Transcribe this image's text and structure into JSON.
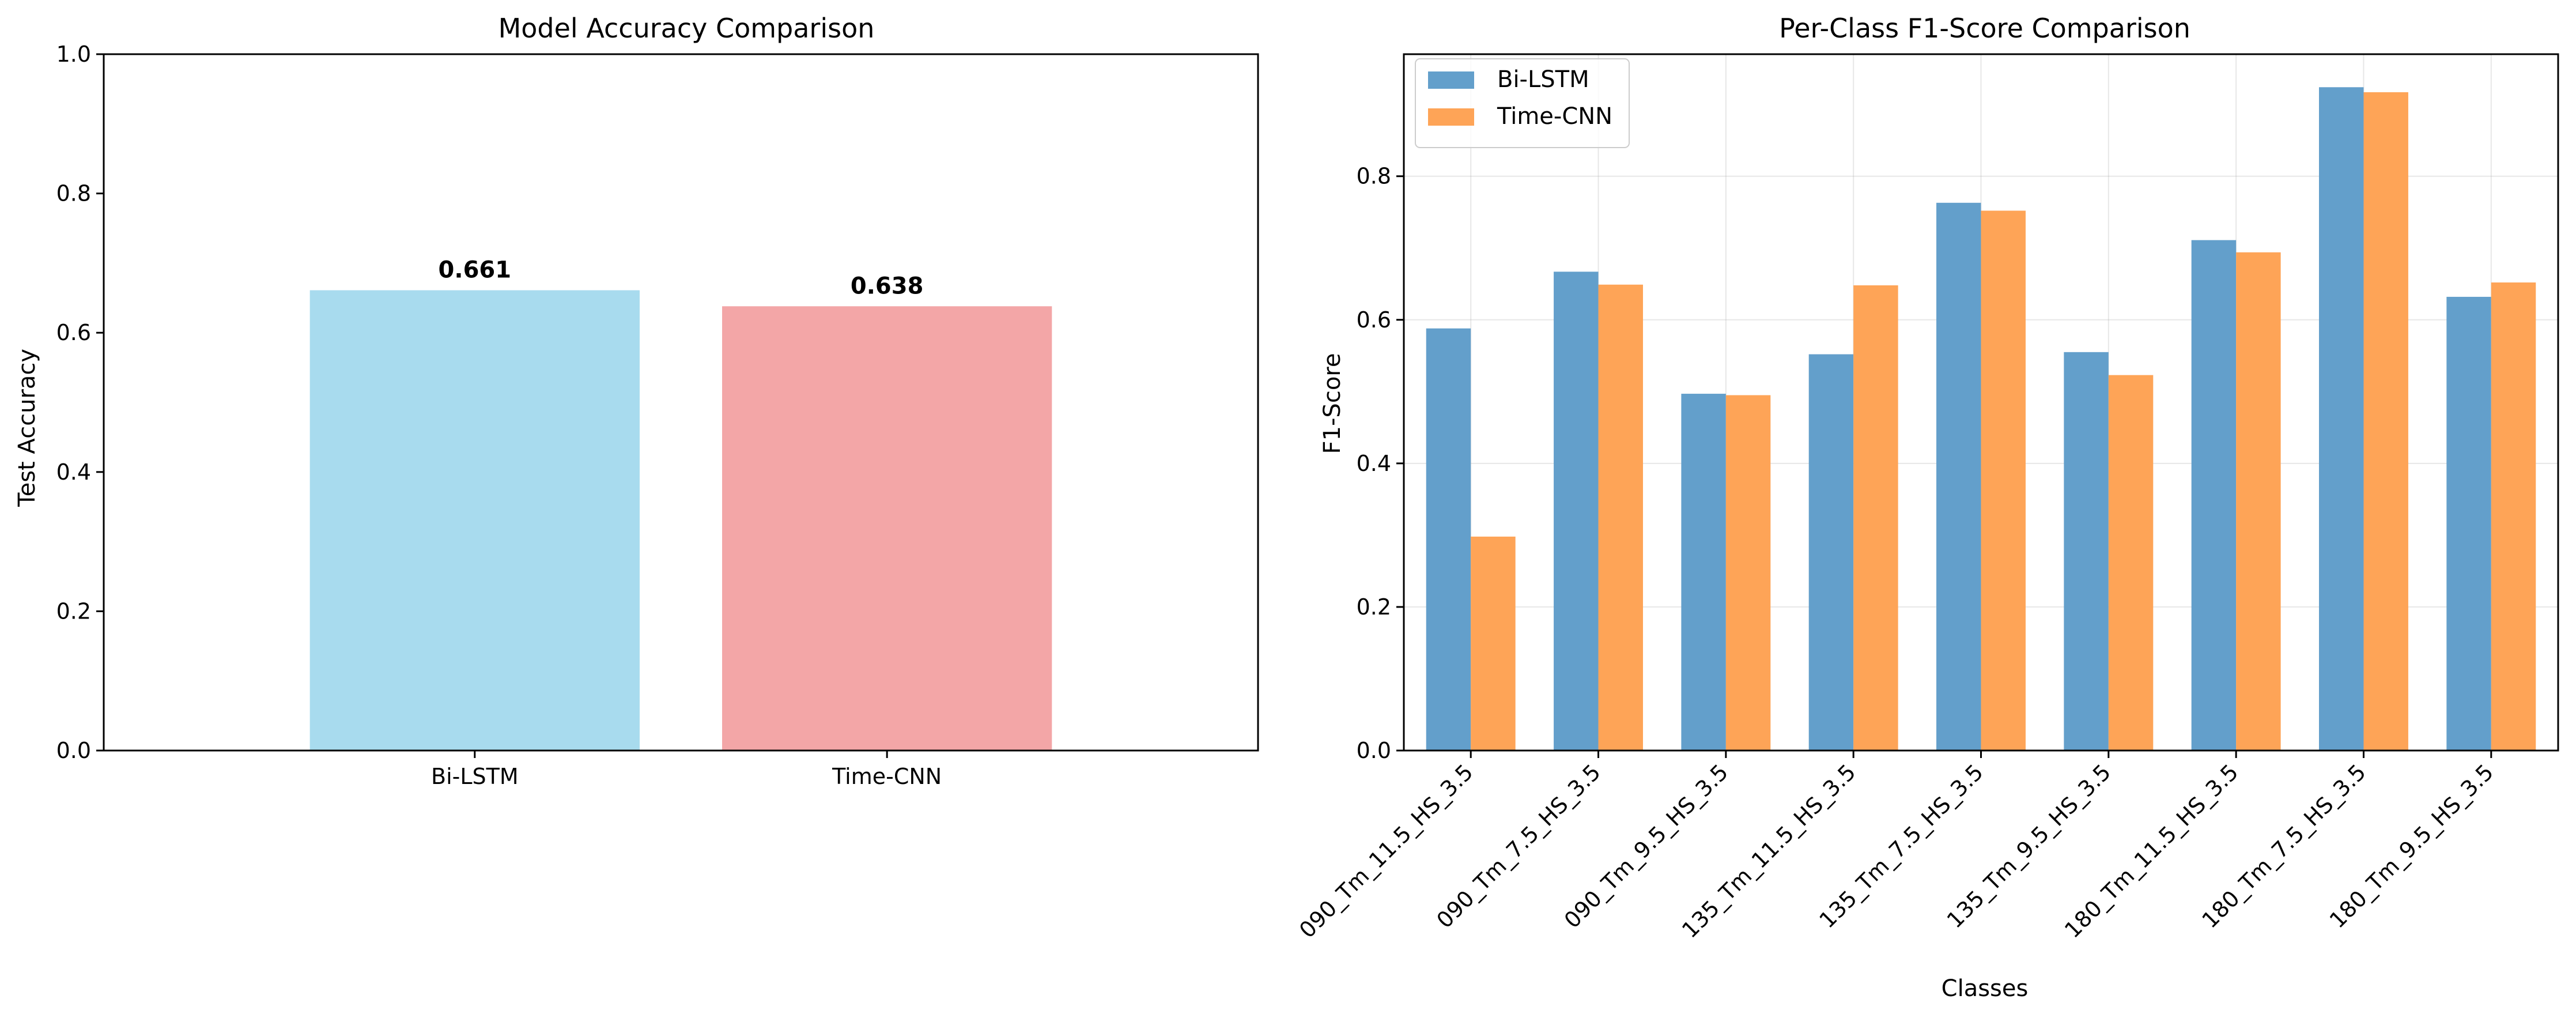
{
  "chart_data": [
    {
      "type": "bar",
      "title": "Model Accuracy Comparison",
      "xlabel": "",
      "ylabel": "Test Accuracy",
      "categories": [
        "Bi-LSTM",
        "Time-CNN"
      ],
      "values": [
        0.661,
        0.638
      ],
      "value_labels": [
        "0.661",
        "0.638"
      ],
      "colors": [
        "#a8dbee",
        "#f3a6a7"
      ],
      "ylim": [
        0,
        1
      ],
      "yticks": [
        0.0,
        0.2,
        0.4,
        0.6,
        0.8,
        1.0
      ],
      "ytick_labels": [
        "0.0",
        "0.2",
        "0.4",
        "0.6",
        "0.8",
        "1.0"
      ],
      "grid": false
    },
    {
      "type": "bar",
      "title": "Per-Class F1-Score Comparison",
      "xlabel": "Classes",
      "ylabel": "F1-Score",
      "categories": [
        "090_Tm_11.5_HS_3.5",
        "090_Tm_7.5_HS_3.5",
        "090_Tm_9.5_HS_3.5",
        "135_Tm_11.5_HS_3.5",
        "135_Tm_7.5_HS_3.5",
        "135_Tm_9.5_HS_3.5",
        "180_Tm_11.5_HS_3.5",
        "180_Tm_7.5_HS_3.5",
        "180_Tm_9.5_HS_3.5"
      ],
      "series": [
        {
          "name": "Bi-LSTM",
          "color": "#639fcb",
          "values": [
            0.588,
            0.667,
            0.497,
            0.552,
            0.763,
            0.555,
            0.711,
            0.924,
            0.632
          ]
        },
        {
          "name": "Time-CNN",
          "color": "#fea457",
          "values": [
            0.298,
            0.649,
            0.495,
            0.648,
            0.752,
            0.523,
            0.694,
            0.917,
            0.652
          ]
        }
      ],
      "ylim": [
        0,
        0.97
      ],
      "yticks": [
        0.0,
        0.2,
        0.4,
        0.6,
        0.8
      ],
      "ytick_labels": [
        "0.0",
        "0.2",
        "0.4",
        "0.6",
        "0.8"
      ],
      "grid": true,
      "legend_position": "top-left"
    }
  ]
}
